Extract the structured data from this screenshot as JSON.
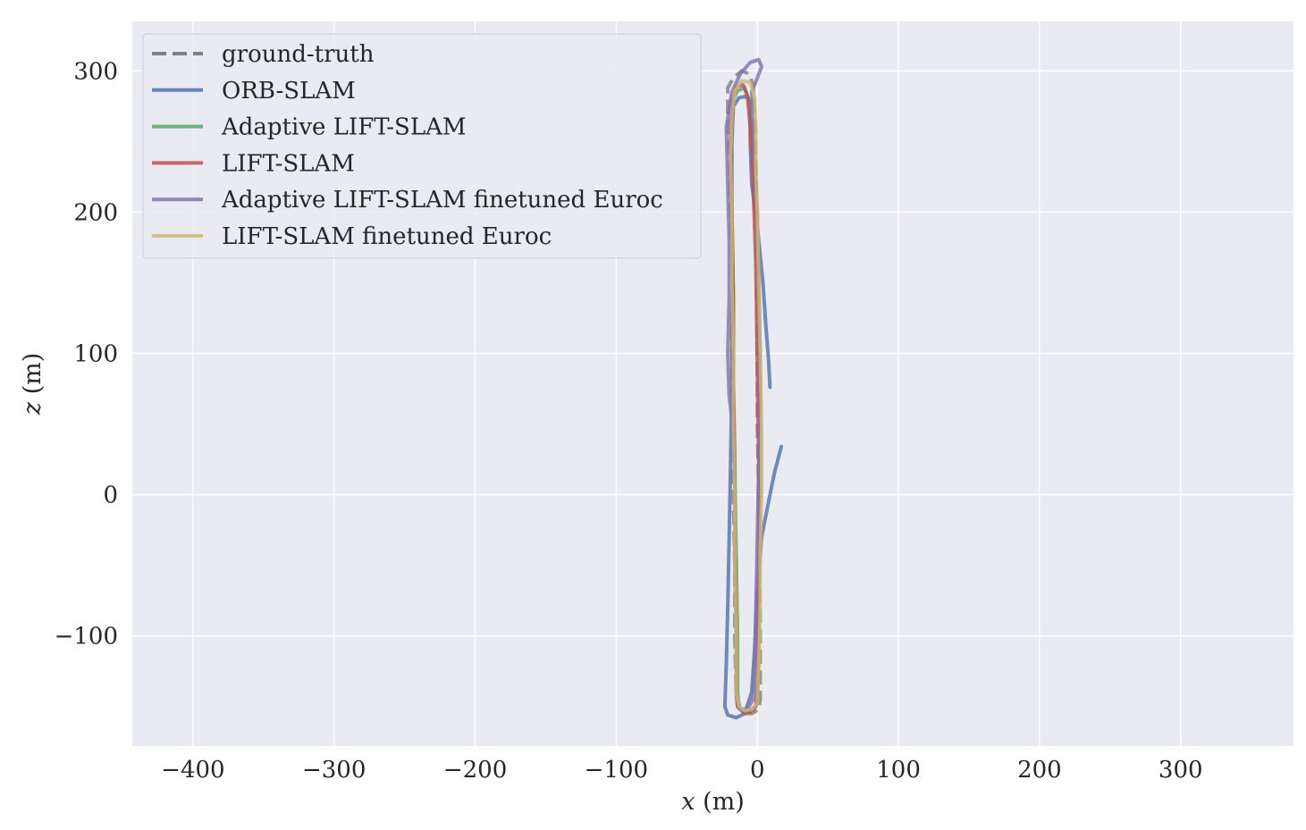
{
  "chart_data": {
    "type": "line",
    "title": "",
    "xlabel": {
      "var": "x",
      "unit": " (m)"
    },
    "ylabel": {
      "var": "z",
      "unit": " (m)"
    },
    "xlim": [
      -443,
      380
    ],
    "ylim": [
      -178,
      335
    ],
    "xticks": [
      -400,
      -300,
      -200,
      -100,
      0,
      100,
      200,
      300
    ],
    "xtick_labels": [
      "−400",
      "−300",
      "−200",
      "−100",
      "0",
      "100",
      "200",
      "300"
    ],
    "yticks": [
      -100,
      0,
      100,
      200,
      300
    ],
    "ytick_labels": [
      "−100",
      "0",
      "100",
      "200",
      "300"
    ],
    "grid": true,
    "legend_position": "top-left",
    "colors": {
      "background": "#eaeaf2",
      "grid": "#ffffff",
      "text": "#262626"
    },
    "series": [
      {
        "name": "ground-truth",
        "color": "#7f7f7f",
        "dashed": true,
        "points": [
          [
            0,
            110
          ],
          [
            0,
            160
          ],
          [
            -1,
            240
          ],
          [
            -2,
            270
          ],
          [
            -3,
            290
          ],
          [
            -6,
            298
          ],
          [
            -11,
            300
          ],
          [
            -17,
            295
          ],
          [
            -21,
            288
          ],
          [
            -21,
            270
          ],
          [
            -20,
            240
          ],
          [
            -19,
            200
          ],
          [
            -18,
            150
          ],
          [
            -18,
            100
          ],
          [
            -17,
            50
          ],
          [
            -17,
            0
          ],
          [
            -16,
            -50
          ],
          [
            -16,
            -100
          ],
          [
            -15,
            -140
          ],
          [
            -14,
            -150
          ],
          [
            -10,
            -155
          ],
          [
            -4,
            -155
          ],
          [
            1,
            -152
          ],
          [
            2,
            -145
          ],
          [
            2,
            -120
          ],
          [
            2,
            -80
          ],
          [
            1,
            -40
          ],
          [
            1,
            0
          ],
          [
            0,
            50
          ],
          [
            0,
            110
          ]
        ]
      },
      {
        "name": "ORB-SLAM",
        "color": "#4c72b0",
        "dashed": false,
        "points": [
          [
            17,
            34
          ],
          [
            12,
            15
          ],
          [
            8,
            -5
          ],
          [
            3,
            -30
          ],
          [
            0,
            -70
          ],
          [
            -2,
            -110
          ],
          [
            -4,
            -140
          ],
          [
            -9,
            -155
          ],
          [
            -15,
            -158
          ],
          [
            -21,
            -156
          ],
          [
            -23,
            -150
          ],
          [
            -22,
            -120
          ],
          [
            -21,
            -80
          ],
          [
            -20,
            -30
          ],
          [
            -19,
            20
          ],
          [
            -18,
            80
          ],
          [
            -18,
            140
          ],
          [
            -18,
            200
          ],
          [
            -18,
            250
          ],
          [
            -17,
            275
          ],
          [
            -13,
            281
          ],
          [
            -8,
            282
          ],
          [
            -5,
            278
          ],
          [
            -5,
            250
          ],
          [
            -4,
            220
          ],
          [
            0,
            190
          ],
          [
            4,
            150
          ],
          [
            6,
            120
          ],
          [
            8,
            95
          ],
          [
            9,
            76
          ]
        ]
      },
      {
        "name": "Adaptive LIFT-SLAM",
        "color": "#55a868",
        "dashed": false,
        "points": [
          [
            2,
            40
          ],
          [
            1,
            100
          ],
          [
            0,
            160
          ],
          [
            -2,
            220
          ],
          [
            -4,
            260
          ],
          [
            -6,
            280
          ],
          [
            -9,
            288
          ],
          [
            -14,
            286
          ],
          [
            -18,
            278
          ],
          [
            -19,
            250
          ],
          [
            -18,
            200
          ],
          [
            -17,
            140
          ],
          [
            -17,
            80
          ],
          [
            -16,
            20
          ],
          [
            -15,
            -40
          ],
          [
            -14,
            -100
          ],
          [
            -14,
            -140
          ],
          [
            -13,
            -150
          ],
          [
            -9,
            -154
          ],
          [
            -4,
            -153
          ],
          [
            0,
            -148
          ],
          [
            1,
            -120
          ],
          [
            1,
            -80
          ],
          [
            1,
            -40
          ],
          [
            2,
            0
          ],
          [
            2,
            40
          ]
        ]
      },
      {
        "name": "LIFT-SLAM",
        "color": "#c44e52",
        "dashed": false,
        "points": [
          [
            1,
            20
          ],
          [
            0,
            90
          ],
          [
            -1,
            160
          ],
          [
            -3,
            220
          ],
          [
            -5,
            260
          ],
          [
            -7,
            282
          ],
          [
            -10,
            290
          ],
          [
            -15,
            289
          ],
          [
            -18,
            280
          ],
          [
            -19,
            250
          ],
          [
            -18,
            200
          ],
          [
            -17,
            140
          ],
          [
            -17,
            80
          ],
          [
            -16,
            20
          ],
          [
            -16,
            -40
          ],
          [
            -15,
            -100
          ],
          [
            -15,
            -140
          ],
          [
            -14,
            -150
          ],
          [
            -10,
            -154
          ],
          [
            -5,
            -154
          ],
          [
            -1,
            -150
          ],
          [
            0,
            -130
          ],
          [
            0,
            -90
          ],
          [
            1,
            -40
          ],
          [
            1,
            20
          ]
        ]
      },
      {
        "name": "Adaptive LIFT-SLAM finetuned Euroc",
        "color": "#8172b2",
        "dashed": false,
        "points": [
          [
            -17,
            45
          ],
          [
            -20,
            70
          ],
          [
            -21,
            100
          ],
          [
            -20,
            140
          ],
          [
            -20,
            180
          ],
          [
            -21,
            220
          ],
          [
            -22,
            260
          ],
          [
            -18,
            285
          ],
          [
            -12,
            298
          ],
          [
            -5,
            306
          ],
          [
            1,
            308
          ],
          [
            3,
            303
          ],
          [
            0,
            295
          ],
          [
            -4,
            285
          ],
          [
            -3,
            270
          ],
          [
            -2,
            240
          ],
          [
            0,
            200
          ],
          [
            1,
            150
          ],
          [
            2,
            100
          ],
          [
            2,
            60
          ],
          [
            1,
            20
          ],
          [
            0,
            -30
          ],
          [
            -1,
            -80
          ],
          [
            -2,
            -120
          ],
          [
            -3,
            -145
          ],
          [
            -7,
            -152
          ],
          [
            -12,
            -152
          ],
          [
            -14,
            -145
          ]
        ]
      },
      {
        "name": "LIFT-SLAM finetuned Euroc",
        "color": "#ccb974",
        "dashed": false,
        "points": [
          [
            -1,
            230
          ],
          [
            -1,
            260
          ],
          [
            -2,
            282
          ],
          [
            -5,
            292
          ],
          [
            -11,
            293
          ],
          [
            -16,
            286
          ],
          [
            -18,
            270
          ],
          [
            -19,
            240
          ],
          [
            -18,
            200
          ],
          [
            -18,
            150
          ],
          [
            -17,
            100
          ],
          [
            -17,
            50
          ],
          [
            -16,
            0
          ],
          [
            -16,
            -50
          ],
          [
            -15,
            -100
          ],
          [
            -15,
            -140
          ],
          [
            -13,
            -150
          ],
          [
            -9,
            -153
          ],
          [
            -4,
            -152
          ],
          [
            0,
            -148
          ],
          [
            1,
            -120
          ],
          [
            2,
            -80
          ],
          [
            2,
            -40
          ],
          [
            3,
            0
          ],
          [
            3,
            50
          ],
          [
            2,
            100
          ],
          [
            1,
            150
          ],
          [
            0,
            200
          ],
          [
            -1,
            230
          ]
        ]
      }
    ]
  }
}
